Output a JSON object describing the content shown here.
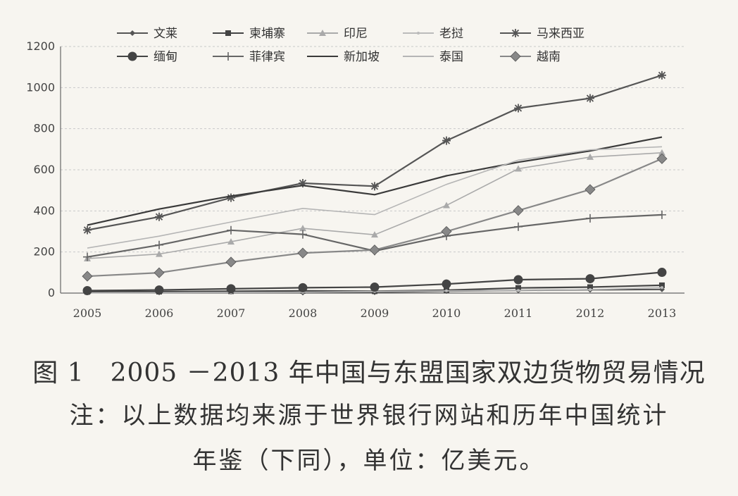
{
  "chart_data": {
    "type": "line",
    "x": [
      "2005",
      "2006",
      "2007",
      "2008",
      "2009",
      "2010",
      "2011",
      "2012",
      "2013"
    ],
    "ylim": [
      0,
      1200
    ],
    "yticks": [
      "0",
      "200",
      "400",
      "600",
      "800",
      "1000",
      "1200"
    ],
    "grid": "horizontal-dashed",
    "legend_position": "top",
    "series": [
      {
        "name": "文莱",
        "marker": "diamond-small",
        "color": "#555555",
        "values": [
          3,
          3,
          7,
          2,
          4,
          10,
          13,
          16,
          18
        ]
      },
      {
        "name": "柬埔寨",
        "marker": "square",
        "color": "#444444",
        "values": [
          6,
          7,
          9,
          11,
          9,
          14,
          25,
          29,
          38
        ]
      },
      {
        "name": "印尼",
        "marker": "triangle",
        "color": "#aaaaaa",
        "values": [
          168,
          190,
          250,
          315,
          284,
          427,
          605,
          662,
          683
        ]
      },
      {
        "name": "老挝",
        "marker": "dot",
        "color": "#bbbbbb",
        "values": [
          1,
          2,
          3,
          4,
          8,
          11,
          13,
          17,
          27
        ]
      },
      {
        "name": "马来西亚",
        "marker": "asterisk",
        "color": "#555555",
        "values": [
          307,
          371,
          464,
          535,
          520,
          742,
          900,
          948,
          1060
        ]
      },
      {
        "name": "缅甸",
        "marker": "circle",
        "color": "#444444",
        "values": [
          12,
          15,
          21,
          26,
          29,
          44,
          65,
          70,
          101
        ]
      },
      {
        "name": "菲律宾",
        "marker": "plus",
        "color": "#666666",
        "values": [
          176,
          234,
          306,
          286,
          205,
          278,
          323,
          364,
          381
        ]
      },
      {
        "name": "新加坡",
        "marker": "none",
        "color": "#3a3a3a",
        "values": [
          331,
          409,
          472,
          524,
          479,
          571,
          637,
          692,
          759
        ]
      },
      {
        "name": "泰国",
        "marker": "none-light",
        "color": "#b5b5b5",
        "values": [
          219,
          277,
          346,
          412,
          382,
          529,
          647,
          697,
          712
        ]
      },
      {
        "name": "越南",
        "marker": "diamond",
        "color": "#888888",
        "values": [
          82,
          99,
          151,
          195,
          210,
          300,
          402,
          504,
          654
        ]
      }
    ]
  },
  "caption": {
    "title": "图 1　2005 －2013 年中国与东盟国家双边货物贸易情况",
    "note_line1": "注：以上数据均来源于世界银行网站和历年中国统计",
    "note_line2": "年鉴（下同），单位：亿美元。"
  }
}
